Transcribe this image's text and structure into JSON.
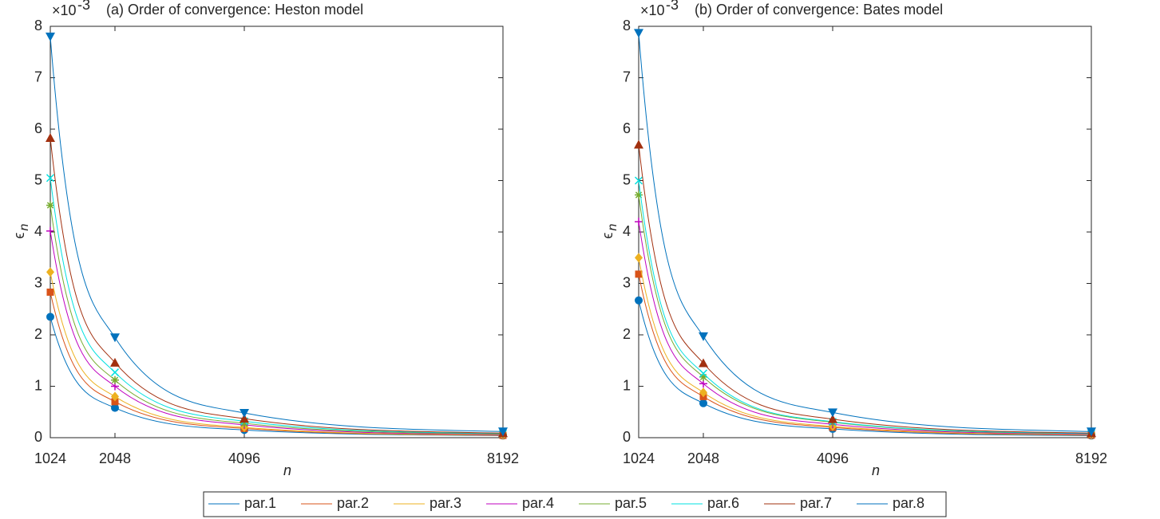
{
  "chart_data": [
    {
      "type": "line",
      "title": "(a) Order of convergence: Heston model",
      "xlabel": "n",
      "ylabel": "ϵ",
      "ylabel_subscript": "n",
      "y_exponent_base": "×10",
      "y_exponent_power": "-3",
      "x": [
        1024,
        2048,
        4096,
        8192
      ],
      "xlim": [
        1024,
        8192
      ],
      "xticks": [
        1024,
        2048,
        4096,
        8192
      ],
      "ylim": [
        0,
        8
      ],
      "yticks": [
        0,
        1,
        2,
        3,
        4,
        5,
        6,
        7,
        8
      ],
      "series": [
        {
          "name": "par.1",
          "color": "#0072bd",
          "marker": "o",
          "values": [
            2.35,
            0.58,
            0.15,
            0.04
          ]
        },
        {
          "name": "par.2",
          "color": "#d95319",
          "marker": "s",
          "values": [
            2.83,
            0.7,
            0.18,
            0.045
          ]
        },
        {
          "name": "par.3",
          "color": "#edb120",
          "marker": "d",
          "values": [
            3.22,
            0.8,
            0.2,
            0.05
          ]
        },
        {
          "name": "par.4",
          "color": "#bf00bf",
          "marker": "+",
          "values": [
            4.02,
            1.0,
            0.25,
            0.06
          ]
        },
        {
          "name": "par.5",
          "color": "#77ac30",
          "marker": "*",
          "values": [
            4.52,
            1.12,
            0.28,
            0.07
          ]
        },
        {
          "name": "par.6",
          "color": "#00e0e0",
          "marker": "x",
          "values": [
            5.05,
            1.27,
            0.32,
            0.08
          ]
        },
        {
          "name": "par.7",
          "color": "#a2300f",
          "marker": "^",
          "values": [
            5.83,
            1.46,
            0.37,
            0.09
          ]
        },
        {
          "name": "par.8",
          "color": "#0072bd",
          "marker": "v",
          "values": [
            7.8,
            1.95,
            0.48,
            0.12
          ]
        }
      ]
    },
    {
      "type": "line",
      "title": "(b) Order of convergence: Bates model",
      "xlabel": "n",
      "ylabel": "ϵ",
      "ylabel_subscript": "n",
      "y_exponent_base": "×10",
      "y_exponent_power": "-3",
      "x": [
        1024,
        2048,
        4096,
        8192
      ],
      "xlim": [
        1024,
        8192
      ],
      "xticks": [
        1024,
        2048,
        4096,
        8192
      ],
      "ylim": [
        0,
        8
      ],
      "yticks": [
        0,
        1,
        2,
        3,
        4,
        5,
        6,
        7,
        8
      ],
      "series": [
        {
          "name": "par.1",
          "color": "#0072bd",
          "marker": "o",
          "values": [
            2.67,
            0.67,
            0.17,
            0.04
          ]
        },
        {
          "name": "par.2",
          "color": "#d95319",
          "marker": "s",
          "values": [
            3.18,
            0.8,
            0.2,
            0.05
          ]
        },
        {
          "name": "par.3",
          "color": "#edb120",
          "marker": "d",
          "values": [
            3.5,
            0.88,
            0.22,
            0.055
          ]
        },
        {
          "name": "par.4",
          "color": "#bf00bf",
          "marker": "+",
          "values": [
            4.2,
            1.05,
            0.26,
            0.065
          ]
        },
        {
          "name": "par.5",
          "color": "#77ac30",
          "marker": "*",
          "values": [
            4.72,
            1.18,
            0.3,
            0.075
          ]
        },
        {
          "name": "par.6",
          "color": "#00e0e0",
          "marker": "x",
          "values": [
            5.0,
            1.25,
            0.31,
            0.08
          ]
        },
        {
          "name": "par.7",
          "color": "#a2300f",
          "marker": "^",
          "values": [
            5.7,
            1.45,
            0.36,
            0.09
          ]
        },
        {
          "name": "par.8",
          "color": "#0072bd",
          "marker": "v",
          "values": [
            7.87,
            1.97,
            0.49,
            0.12
          ]
        }
      ]
    }
  ]
}
